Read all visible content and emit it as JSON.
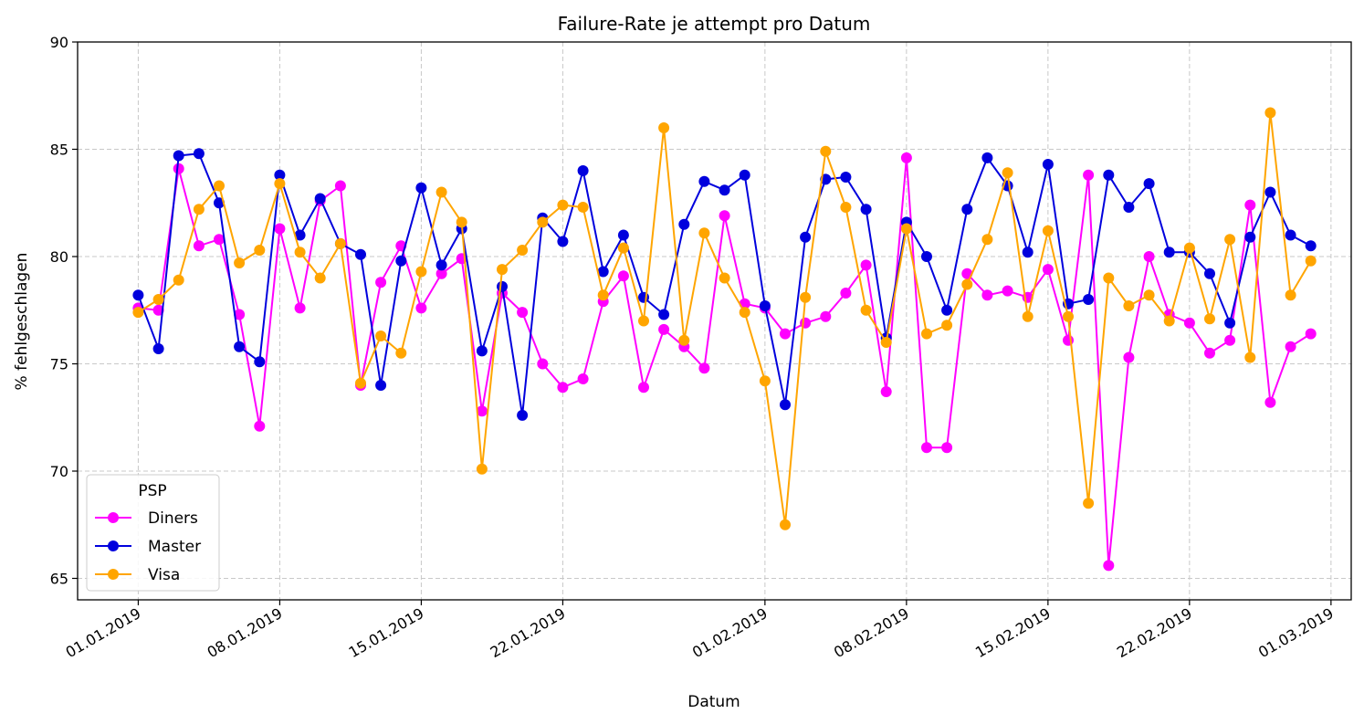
{
  "chart_data": {
    "type": "line",
    "title": "Failure-Rate je attempt pro Datum",
    "xlabel": "Datum",
    "ylabel": "% fehlgeschlagen",
    "ylim": [
      64,
      90
    ],
    "yticks": [
      65,
      70,
      75,
      80,
      85,
      90
    ],
    "xlim": [
      "2018-12-29",
      "2019-03-02"
    ],
    "xticks": [
      {
        "date": "2019-01-01",
        "label": "01.01.2019"
      },
      {
        "date": "2019-01-08",
        "label": "08.01.2019"
      },
      {
        "date": "2019-01-15",
        "label": "15.01.2019"
      },
      {
        "date": "2019-01-22",
        "label": "22.01.2019"
      },
      {
        "date": "2019-02-01",
        "label": "01.02.2019"
      },
      {
        "date": "2019-02-08",
        "label": "08.02.2019"
      },
      {
        "date": "2019-02-15",
        "label": "15.02.2019"
      },
      {
        "date": "2019-02-22",
        "label": "22.02.2019"
      },
      {
        "date": "2019-03-01",
        "label": "01.03.2019"
      }
    ],
    "grid": true,
    "legend": {
      "title": "PSP",
      "placement": "lower-left"
    },
    "x": [
      "2019-01-01",
      "2019-01-02",
      "2019-01-03",
      "2019-01-04",
      "2019-01-05",
      "2019-01-06",
      "2019-01-07",
      "2019-01-08",
      "2019-01-09",
      "2019-01-10",
      "2019-01-11",
      "2019-01-12",
      "2019-01-13",
      "2019-01-14",
      "2019-01-15",
      "2019-01-16",
      "2019-01-17",
      "2019-01-18",
      "2019-01-19",
      "2019-01-20",
      "2019-01-21",
      "2019-01-22",
      "2019-01-23",
      "2019-01-24",
      "2019-01-25",
      "2019-01-26",
      "2019-01-27",
      "2019-01-28",
      "2019-01-29",
      "2019-01-30",
      "2019-01-31",
      "2019-02-01",
      "2019-02-02",
      "2019-02-03",
      "2019-02-04",
      "2019-02-05",
      "2019-02-06",
      "2019-02-07",
      "2019-02-08",
      "2019-02-09",
      "2019-02-10",
      "2019-02-11",
      "2019-02-12",
      "2019-02-13",
      "2019-02-14",
      "2019-02-15",
      "2019-02-16",
      "2019-02-17",
      "2019-02-18",
      "2019-02-19",
      "2019-02-20",
      "2019-02-21",
      "2019-02-22",
      "2019-02-23",
      "2019-02-24",
      "2019-02-25",
      "2019-02-26",
      "2019-02-27",
      "2019-02-28"
    ],
    "series": [
      {
        "name": "Diners",
        "color": "#ff00ff",
        "values": [
          77.6,
          77.5,
          84.1,
          80.5,
          80.8,
          77.3,
          72.1,
          81.3,
          77.6,
          82.6,
          83.3,
          74.0,
          78.8,
          80.5,
          77.6,
          79.2,
          79.9,
          72.8,
          78.3,
          77.4,
          75.0,
          73.9,
          74.3,
          77.9,
          79.1,
          73.9,
          76.6,
          75.8,
          74.8,
          81.9,
          77.8,
          77.6,
          76.4,
          76.9,
          77.2,
          78.3,
          79.6,
          73.7,
          84.6,
          71.1,
          71.1,
          79.2,
          78.2,
          78.4,
          78.1,
          79.4,
          76.1,
          83.8,
          65.6,
          75.3,
          80.0,
          77.3,
          76.9,
          75.5,
          76.1,
          82.4,
          73.2,
          75.8,
          76.4
        ]
      },
      {
        "name": "Master",
        "color": "#0000dd",
        "values": [
          78.2,
          75.7,
          84.7,
          84.8,
          82.5,
          75.8,
          75.1,
          83.8,
          81.0,
          82.7,
          80.6,
          80.1,
          74.0,
          79.8,
          83.2,
          79.6,
          81.3,
          75.6,
          78.6,
          72.6,
          81.8,
          80.7,
          84.0,
          79.3,
          81.0,
          78.1,
          77.3,
          81.5,
          83.5,
          83.1,
          83.8,
          77.7,
          73.1,
          80.9,
          83.6,
          83.7,
          82.2,
          76.2,
          81.6,
          80.0,
          77.5,
          82.2,
          84.6,
          83.3,
          80.2,
          84.3,
          77.8,
          78.0,
          83.8,
          82.3,
          83.4,
          80.2,
          80.2,
          79.2,
          76.9,
          80.9,
          83.0,
          81.0,
          80.5
        ]
      },
      {
        "name": "Visa",
        "color": "#ffa500",
        "values": [
          77.4,
          78.0,
          78.9,
          82.2,
          83.3,
          79.7,
          80.3,
          83.4,
          80.2,
          79.0,
          80.6,
          74.1,
          76.3,
          75.5,
          79.3,
          83.0,
          81.6,
          70.1,
          79.4,
          80.3,
          81.6,
          82.4,
          82.3,
          78.2,
          80.4,
          77.0,
          86.0,
          76.1,
          81.1,
          79.0,
          77.4,
          74.2,
          67.5,
          78.1,
          84.9,
          82.3,
          77.5,
          76.0,
          81.3,
          76.4,
          76.8,
          78.7,
          80.8,
          83.9,
          77.2,
          81.2,
          77.2,
          68.5,
          79.0,
          77.7,
          78.2,
          77.0,
          80.4,
          77.1,
          80.8,
          75.3,
          86.7,
          78.2,
          79.8
        ]
      }
    ]
  }
}
